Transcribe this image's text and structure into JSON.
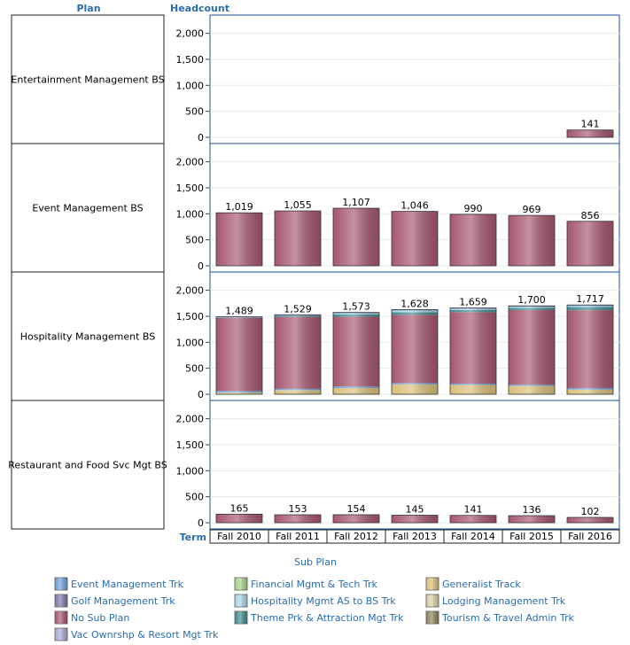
{
  "headers": {
    "plan": "Plan",
    "headcount": "Headcount",
    "term": "Term"
  },
  "legend": {
    "title": "Sub Plan",
    "items": [
      {
        "label": "Event Management Trk",
        "color": "#6f9fd6"
      },
      {
        "label": "Financial Mgmt & Tech Trk",
        "color": "#a9cf8a"
      },
      {
        "label": "Generalist Track",
        "color": "#d9bf78"
      },
      {
        "label": "Golf Management Trk",
        "color": "#7e76a8"
      },
      {
        "label": "Hospitality Mgmt AS to BS Trk",
        "color": "#a9d3e3"
      },
      {
        "label": "Lodging Management Trk",
        "color": "#d6cfa4"
      },
      {
        "label": "No Sub Plan",
        "color": "#a5566e"
      },
      {
        "label": "Theme Prk & Attraction Mgt Trk",
        "color": "#3f8a8c"
      },
      {
        "label": "Tourism & Travel Admin Trk",
        "color": "#8a8458"
      },
      {
        "label": "Vac Ownrshp & Resort Mgt Trk",
        "color": "#a6aad0"
      }
    ]
  },
  "chart_data": {
    "type": "bar",
    "stacked": true,
    "categories": [
      "Fall 2010",
      "Fall 2011",
      "Fall 2012",
      "Fall 2013",
      "Fall 2014",
      "Fall 2015",
      "Fall 2016"
    ],
    "ylim": [
      0,
      2300
    ],
    "yticks": [
      0,
      500,
      1000,
      1500,
      2000
    ],
    "ytick_labels": [
      "0",
      "500",
      "1,000",
      "1,500",
      "2,000"
    ],
    "panels": [
      {
        "plan": "Entertainment Management BS",
        "totals": [
          null,
          null,
          null,
          null,
          null,
          null,
          141
        ],
        "total_labels": [
          "",
          "",
          "",
          "",
          "",
          "",
          "141"
        ],
        "stacks": [
          [],
          [],
          [],
          [],
          [],
          [],
          [
            {
              "sub": "No Sub Plan",
              "value": 141
            }
          ]
        ]
      },
      {
        "plan": "Event Management BS",
        "totals": [
          1019,
          1055,
          1107,
          1046,
          990,
          969,
          856
        ],
        "total_labels": [
          "1,019",
          "1,055",
          "1,107",
          "1,046",
          "990",
          "969",
          "856"
        ],
        "stacks": [
          [
            {
              "sub": "No Sub Plan",
              "value": 1019
            }
          ],
          [
            {
              "sub": "No Sub Plan",
              "value": 1055
            }
          ],
          [
            {
              "sub": "No Sub Plan",
              "value": 1107
            }
          ],
          [
            {
              "sub": "No Sub Plan",
              "value": 1046
            }
          ],
          [
            {
              "sub": "No Sub Plan",
              "value": 990
            }
          ],
          [
            {
              "sub": "No Sub Plan",
              "value": 969
            }
          ],
          [
            {
              "sub": "No Sub Plan",
              "value": 856
            }
          ]
        ]
      },
      {
        "plan": "Hospitality Management BS",
        "totals": [
          1489,
          1529,
          1573,
          1628,
          1659,
          1700,
          1717
        ],
        "total_labels": [
          "1,489",
          "1,529",
          "1,573",
          "1,628",
          "1,659",
          "1,700",
          "1,717"
        ],
        "stacks": [
          [
            {
              "sub": "Generalist Track",
              "value": 20
            },
            {
              "sub": "Lodging Management Trk",
              "value": 15
            },
            {
              "sub": "Event Management Trk",
              "value": 30
            },
            {
              "sub": "No Sub Plan",
              "value": 1404
            },
            {
              "sub": "Event Management Trk",
              "value": 20
            }
          ],
          [
            {
              "sub": "Generalist Track",
              "value": 60
            },
            {
              "sub": "Lodging Management Trk",
              "value": 20
            },
            {
              "sub": "Event Management Trk",
              "value": 25
            },
            {
              "sub": "No Sub Plan",
              "value": 1384
            },
            {
              "sub": "Theme Prk & Attraction Mgt Trk",
              "value": 20
            },
            {
              "sub": "Event Management Trk",
              "value": 20
            }
          ],
          [
            {
              "sub": "Generalist Track",
              "value": 120
            },
            {
              "sub": "Event Management Trk",
              "value": 30
            },
            {
              "sub": "No Sub Plan",
              "value": 1343
            },
            {
              "sub": "Theme Prk & Attraction Mgt Trk",
              "value": 40
            },
            {
              "sub": "Hospitality Mgmt AS to BS Trk",
              "value": 20
            },
            {
              "sub": "Event Management Trk",
              "value": 20
            }
          ],
          [
            {
              "sub": "Generalist Track",
              "value": 190
            },
            {
              "sub": "Event Management Trk",
              "value": 25
            },
            {
              "sub": "No Sub Plan",
              "value": 1313
            },
            {
              "sub": "Theme Prk & Attraction Mgt Trk",
              "value": 50
            },
            {
              "sub": "Hospitality Mgmt AS to BS Trk",
              "value": 30
            },
            {
              "sub": "Event Management Trk",
              "value": 20
            }
          ],
          [
            {
              "sub": "Generalist Track",
              "value": 180
            },
            {
              "sub": "Event Management Trk",
              "value": 25
            },
            {
              "sub": "No Sub Plan",
              "value": 1374
            },
            {
              "sub": "Theme Prk & Attraction Mgt Trk",
              "value": 40
            },
            {
              "sub": "Hospitality Mgmt AS to BS Trk",
              "value": 20
            },
            {
              "sub": "Event Management Trk",
              "value": 20
            }
          ],
          [
            {
              "sub": "Generalist Track",
              "value": 160
            },
            {
              "sub": "Event Management Trk",
              "value": 25
            },
            {
              "sub": "No Sub Plan",
              "value": 1435
            },
            {
              "sub": "Theme Prk & Attraction Mgt Trk",
              "value": 40
            },
            {
              "sub": "Hospitality Mgmt AS to BS Trk",
              "value": 20
            },
            {
              "sub": "Event Management Trk",
              "value": 20
            }
          ],
          [
            {
              "sub": "Generalist Track",
              "value": 90
            },
            {
              "sub": "Event Management Trk",
              "value": 30
            },
            {
              "sub": "No Sub Plan",
              "value": 1497
            },
            {
              "sub": "Theme Prk & Attraction Mgt Trk",
              "value": 60
            },
            {
              "sub": "Hospitality Mgmt AS to BS Trk",
              "value": 20
            },
            {
              "sub": "Event Management Trk",
              "value": 20
            }
          ]
        ]
      },
      {
        "plan": "Restaurant and Food Svc Mgt BS",
        "totals": [
          165,
          153,
          154,
          145,
          141,
          136,
          102
        ],
        "total_labels": [
          "165",
          "153",
          "154",
          "145",
          "141",
          "136",
          "102"
        ],
        "stacks": [
          [
            {
              "sub": "No Sub Plan",
              "value": 165
            }
          ],
          [
            {
              "sub": "No Sub Plan",
              "value": 153
            }
          ],
          [
            {
              "sub": "No Sub Plan",
              "value": 154
            }
          ],
          [
            {
              "sub": "No Sub Plan",
              "value": 145
            }
          ],
          [
            {
              "sub": "No Sub Plan",
              "value": 141
            }
          ],
          [
            {
              "sub": "No Sub Plan",
              "value": 136
            }
          ],
          [
            {
              "sub": "No Sub Plan",
              "value": 102
            }
          ]
        ]
      }
    ]
  }
}
